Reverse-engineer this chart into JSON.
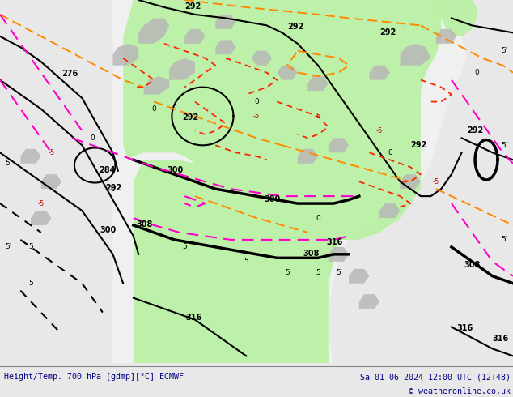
{
  "title_left": "Height/Temp. 700 hPa [gdmp][°C] ECMWF",
  "title_right": "Sa 01-06-2024 12:00 UTC (12+48)",
  "copyright": "© weatheronline.co.uk",
  "ocean_color": "#e8e8e8",
  "land_color": "#f0f0f0",
  "green_color": "#b8f0a0",
  "gray_color": "#b8b8b8",
  "fig_width": 6.34,
  "fig_height": 4.9,
  "footer_text_color": "#000080",
  "footer_bg": "#d8d8d8"
}
